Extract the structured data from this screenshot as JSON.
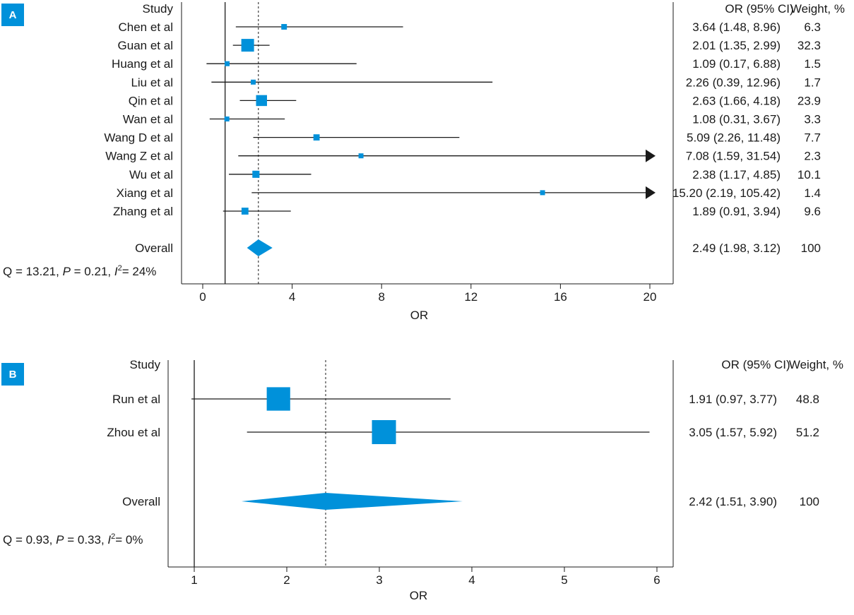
{
  "colors": {
    "marker": "#0091da",
    "line": "#1a1a1a",
    "background": "#ffffff"
  },
  "chart_data": [
    {
      "type": "forest",
      "panel_label": "A",
      "header_study": "Study",
      "header_ci": "OR (95% CI)",
      "header_weight": "Weight, %",
      "xlabel": "OR",
      "xlim": [
        -1.0,
        21.0
      ],
      "xticks": [
        0,
        4,
        8,
        12,
        16,
        20
      ],
      "xtick_labels": [
        "0",
        "4",
        "8",
        "12",
        "16",
        "20"
      ],
      "null_line": 1,
      "pooled_line": 2.49,
      "studies": [
        {
          "name": "Chen et al",
          "or": 3.64,
          "lower": 1.48,
          "upper": 8.96,
          "ci_text": "3.64 (1.48, 8.96)",
          "weight": "6.3",
          "arrow": false
        },
        {
          "name": "Guan et al",
          "or": 2.01,
          "lower": 1.35,
          "upper": 2.99,
          "ci_text": "2.01 (1.35, 2.99)",
          "weight": "32.3",
          "arrow": false
        },
        {
          "name": "Huang et al",
          "or": 1.09,
          "lower": 0.17,
          "upper": 6.88,
          "ci_text": "1.09 (0.17, 6.88)",
          "weight": "1.5",
          "arrow": false
        },
        {
          "name": "Liu et al",
          "or": 2.26,
          "lower": 0.39,
          "upper": 12.96,
          "ci_text": "2.26 (0.39, 12.96)",
          "weight": "1.7",
          "arrow": false
        },
        {
          "name": "Qin et al",
          "or": 2.63,
          "lower": 1.66,
          "upper": 4.18,
          "ci_text": "2.63 (1.66, 4.18)",
          "weight": "23.9",
          "arrow": false
        },
        {
          "name": "Wan et al",
          "or": 1.08,
          "lower": 0.31,
          "upper": 3.67,
          "ci_text": "1.08 (0.31, 3.67)",
          "weight": "3.3",
          "arrow": false
        },
        {
          "name": "Wang D et al",
          "or": 5.09,
          "lower": 2.26,
          "upper": 11.48,
          "ci_text": "5.09 (2.26, 11.48)",
          "weight": "7.7",
          "arrow": false
        },
        {
          "name": "Wang Z et al",
          "or": 7.08,
          "lower": 1.59,
          "upper": 31.54,
          "ci_text": "7.08 (1.59, 31.54)",
          "weight": "2.3",
          "arrow": true
        },
        {
          "name": "Wu et al",
          "or": 2.38,
          "lower": 1.17,
          "upper": 4.85,
          "ci_text": "2.38 (1.17, 4.85)",
          "weight": "10.1",
          "arrow": false
        },
        {
          "name": "Xiang et al",
          "or": 15.2,
          "lower": 2.19,
          "upper": 105.42,
          "ci_text": "15.20 (2.19, 105.42)",
          "weight": "1.4",
          "arrow": true
        },
        {
          "name": "Zhang et al",
          "or": 1.89,
          "lower": 0.91,
          "upper": 3.94,
          "ci_text": "1.89 (0.91, 3.94)",
          "weight": "9.6",
          "arrow": false
        }
      ],
      "overall": {
        "name": "Overall",
        "or": 2.49,
        "lower": 1.98,
        "upper": 3.12,
        "ci_text": "2.49 (1.98, 3.12)",
        "weight": "100"
      },
      "heterogeneity": {
        "q": "Q = 13.21, ",
        "p_sym": "P",
        "p": " = 0.21, ",
        "i_sym": "I",
        "i": "= 24%"
      }
    },
    {
      "type": "forest",
      "panel_label": "B",
      "header_study": "Study",
      "header_ci": "OR (95% CI)",
      "header_weight": "Weight, %",
      "xlabel": "OR",
      "xlim": [
        0.72,
        6.17
      ],
      "xticks": [
        1,
        2,
        3,
        4,
        5,
        6
      ],
      "xtick_labels": [
        "1",
        "2",
        "3",
        "4",
        "5",
        "6"
      ],
      "null_line": 1,
      "pooled_line": 2.42,
      "studies": [
        {
          "name": "Run et al",
          "or": 1.91,
          "lower": 0.97,
          "upper": 3.77,
          "ci_text": "1.91 (0.97, 3.77)",
          "weight": "48.8",
          "arrow": false
        },
        {
          "name": "Zhou et al",
          "or": 3.05,
          "lower": 1.57,
          "upper": 5.92,
          "ci_text": "3.05 (1.57, 5.92)",
          "weight": "51.2",
          "arrow": false
        }
      ],
      "overall": {
        "name": "Overall",
        "or": 2.42,
        "lower": 1.51,
        "upper": 3.9,
        "ci_text": "2.42 (1.51, 3.90)",
        "weight": "100"
      },
      "heterogeneity": {
        "q": "Q = 0.93, ",
        "p_sym": "P",
        "p": " = 0.33, ",
        "i_sym": "I",
        "i": "= 0%"
      }
    }
  ]
}
